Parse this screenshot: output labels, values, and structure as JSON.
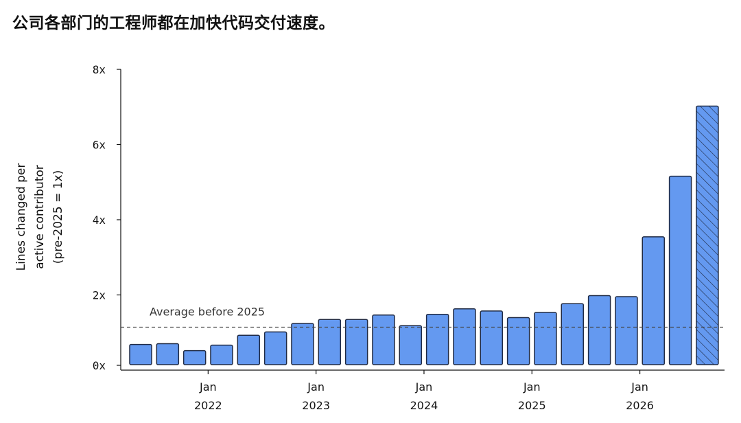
{
  "title": "公司各部门的工程师都在加快代码交付速度。",
  "chart_data": {
    "type": "bar",
    "ylabel_lines": [
      "Lines changed per",
      "active contributor",
      "(pre-2025 = 1x)"
    ],
    "ylim": [
      0,
      8
    ],
    "y_ticks": [
      {
        "value": 0,
        "label": "0x"
      },
      {
        "value": 2,
        "label": "2x"
      },
      {
        "value": 4,
        "label": "4x"
      },
      {
        "value": 6,
        "label": "6x"
      },
      {
        "value": 8,
        "label": "8x"
      }
    ],
    "x_ticks": [
      {
        "at_bar": 2.5,
        "month": "Jan",
        "year": "2022"
      },
      {
        "at_bar": 6.5,
        "month": "Jan",
        "year": "2023"
      },
      {
        "at_bar": 10.5,
        "month": "Jan",
        "year": "2024"
      },
      {
        "at_bar": 14.5,
        "month": "Jan",
        "year": "2025"
      },
      {
        "at_bar": 18.5,
        "month": "Jan",
        "year": "2026"
      }
    ],
    "values": [
      0.55,
      0.57,
      0.38,
      0.53,
      0.8,
      0.89,
      1.12,
      1.23,
      1.23,
      1.35,
      1.06,
      1.37,
      1.52,
      1.46,
      1.28,
      1.42,
      1.66,
      1.88,
      1.85,
      3.48,
      5.13,
      7.04
    ],
    "partial_last_bar": true,
    "reference_line": {
      "value": 1.02,
      "label": "Average before 2025",
      "style": "dashed"
    },
    "bar_color": "#6499f0",
    "bar_edge_color": "#1f2a44",
    "grid": false
  }
}
